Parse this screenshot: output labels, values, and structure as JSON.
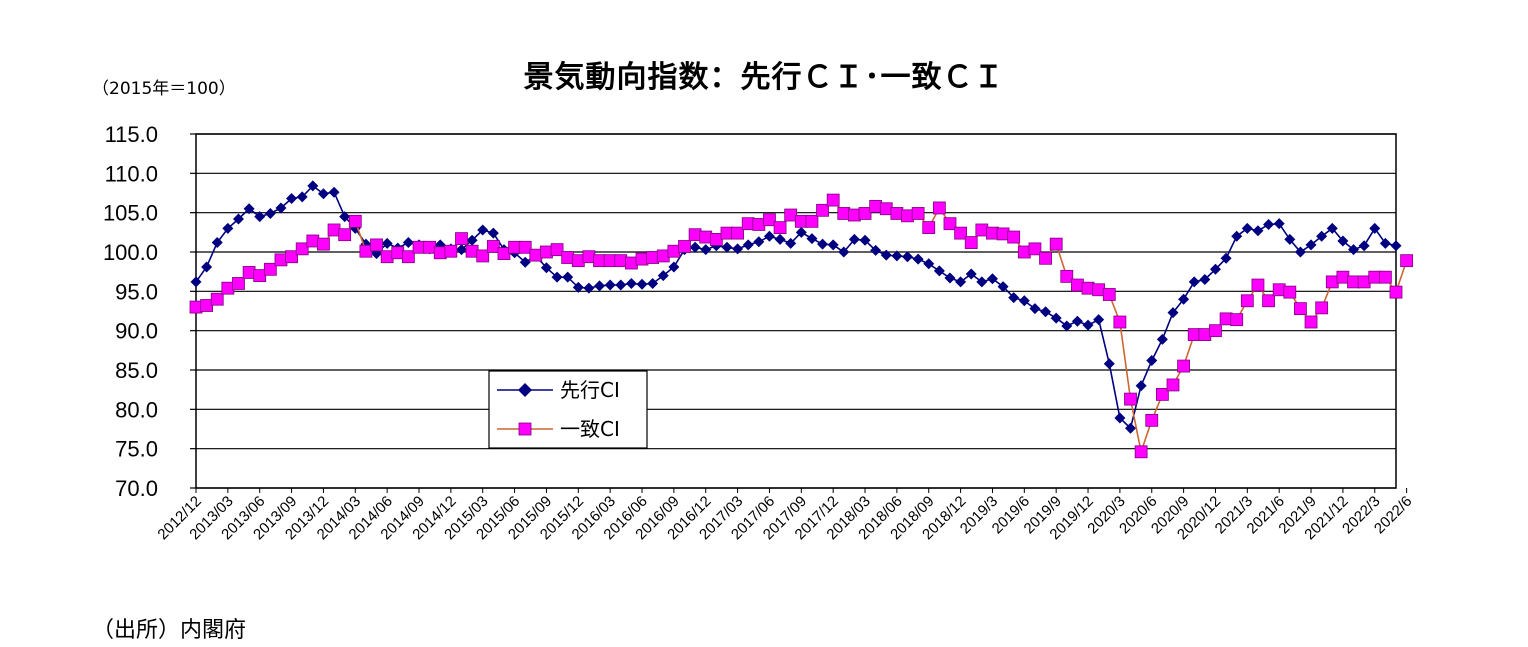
{
  "title": "景気動向指数：先行ＣＩ･一致ＣＩ",
  "unit_note": "（2015年＝100）",
  "source": "（出所）内閣府",
  "chart_data": {
    "type": "line",
    "ylim": [
      70,
      115
    ],
    "yticks": [
      "115.0",
      "110.0",
      "105.0",
      "100.0",
      "95.0",
      "90.0",
      "85.0",
      "80.0",
      "75.0",
      "70.0"
    ],
    "grid": true,
    "legend_position": "bottom-left inside plot",
    "x_tick_labels": [
      "2012/12",
      "2013/03",
      "2013/06",
      "2013/09",
      "2013/12",
      "2014/03",
      "2014/06",
      "2014/09",
      "2014/12",
      "2015/03",
      "2015/06",
      "2015/09",
      "2015/12",
      "2016/03",
      "2016/06",
      "2016/09",
      "2016/12",
      "2017/03",
      "2017/06",
      "2017/09",
      "2017/12",
      "2018/03",
      "2018/06",
      "2018/09",
      "2018/12",
      "2019/3",
      "2019/6",
      "2019/9",
      "2019/12",
      "2020/3",
      "2020/6",
      "2020/9",
      "2020/12",
      "2021/3",
      "2021/6",
      "2021/9",
      "2021/12",
      "2022/3",
      "2022/6"
    ],
    "series": [
      {
        "name": "先行CI",
        "color": "#000080",
        "marker": "diamond",
        "values": [
          96.2,
          98.1,
          101.2,
          103.0,
          104.2,
          105.5,
          104.5,
          104.9,
          105.6,
          106.8,
          107.0,
          108.4,
          107.4,
          107.6,
          104.5,
          103.0,
          101.0,
          99.8,
          101.1,
          100.5,
          101.2,
          100.9,
          100.4,
          100.9,
          100.4,
          100.3,
          101.5,
          102.8,
          102.4,
          100.3,
          99.9,
          98.7,
          99.5,
          98.0,
          96.8,
          96.8,
          95.5,
          95.4,
          95.7,
          95.8,
          95.8,
          96.0,
          95.9,
          96.0,
          97.0,
          98.1,
          100.3,
          100.6,
          100.3,
          100.8,
          100.6,
          100.4,
          100.9,
          101.3,
          102.0,
          101.6,
          101.1,
          102.5,
          101.7,
          101.0,
          100.9,
          100.0,
          101.6,
          101.5,
          100.2,
          99.6,
          99.5,
          99.4,
          99.1,
          98.5,
          97.6,
          96.7,
          96.2,
          97.2,
          96.2,
          96.6,
          95.6,
          94.2,
          93.8,
          92.8,
          92.4,
          91.6,
          90.6,
          91.2,
          90.7,
          91.4,
          85.8,
          78.9,
          77.6,
          83.0,
          86.2,
          88.9,
          92.3,
          94.0,
          96.2,
          96.5,
          97.8,
          99.2,
          102.0,
          103.0,
          102.7,
          103.5,
          103.6,
          101.6,
          100.0,
          100.9,
          102.0,
          103.0,
          101.4,
          100.3,
          100.8,
          103.0,
          101.1,
          100.8
        ]
      },
      {
        "name": "一致CI",
        "color": "#FF00FF",
        "line_color": "#CC6633",
        "marker": "square",
        "values": [
          93.0,
          93.2,
          94.0,
          95.4,
          96.0,
          97.4,
          97.0,
          97.8,
          99.0,
          99.4,
          100.4,
          101.4,
          101.0,
          102.8,
          102.2,
          103.9,
          100.1,
          100.9,
          99.4,
          99.9,
          99.4,
          100.6,
          100.6,
          99.9,
          100.1,
          101.7,
          100.1,
          99.5,
          100.7,
          99.8,
          100.6,
          100.6,
          99.6,
          100.0,
          100.3,
          99.3,
          98.9,
          99.4,
          98.9,
          98.9,
          98.9,
          98.6,
          99.1,
          99.3,
          99.5,
          100.1,
          100.7,
          102.2,
          101.9,
          101.6,
          102.4,
          102.4,
          103.6,
          103.5,
          104.1,
          103.1,
          104.7,
          103.9,
          103.9,
          105.3,
          106.6,
          104.9,
          104.7,
          104.9,
          105.8,
          105.5,
          104.9,
          104.6,
          104.9,
          103.1,
          105.6,
          103.6,
          102.4,
          101.2,
          102.8,
          102.4,
          102.3,
          101.9,
          100.0,
          100.4,
          99.2,
          101.0,
          96.9,
          95.8,
          95.4,
          95.2,
          94.6,
          91.1,
          81.3,
          74.6,
          78.6,
          81.9,
          83.1,
          85.5,
          89.5,
          89.5,
          90.0,
          91.5,
          91.4,
          93.8,
          95.8,
          93.8,
          95.2,
          94.9,
          92.8,
          91.1,
          92.9,
          96.2,
          96.8,
          96.2,
          96.2,
          96.8,
          96.8,
          94.9,
          98.9
        ]
      }
    ]
  }
}
